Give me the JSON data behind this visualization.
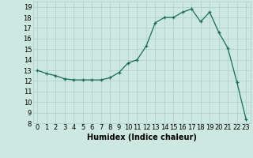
{
  "x": [
    0,
    1,
    2,
    3,
    4,
    5,
    6,
    7,
    8,
    9,
    10,
    11,
    12,
    13,
    14,
    15,
    16,
    17,
    18,
    19,
    20,
    21,
    22,
    23
  ],
  "y": [
    13.0,
    12.7,
    12.5,
    12.2,
    12.1,
    12.1,
    12.1,
    12.1,
    12.3,
    12.8,
    13.7,
    14.0,
    15.3,
    17.5,
    18.0,
    18.0,
    18.5,
    18.8,
    17.6,
    18.5,
    16.6,
    15.1,
    11.9,
    8.4
  ],
  "line_color": "#1a6b5a",
  "marker": "+",
  "marker_size": 3,
  "bg_color": "#cce8e0",
  "grid_color": "#aacfc8",
  "xlabel": "Humidex (Indice chaleur)",
  "xlabel_fontsize": 7,
  "tick_fontsize": 6,
  "xlim": [
    -0.5,
    23.5
  ],
  "ylim": [
    8,
    19.5
  ],
  "yticks": [
    8,
    9,
    10,
    11,
    12,
    13,
    14,
    15,
    16,
    17,
    18,
    19
  ],
  "xticks": [
    0,
    1,
    2,
    3,
    4,
    5,
    6,
    7,
    8,
    9,
    10,
    11,
    12,
    13,
    14,
    15,
    16,
    17,
    18,
    19,
    20,
    21,
    22,
    23
  ]
}
